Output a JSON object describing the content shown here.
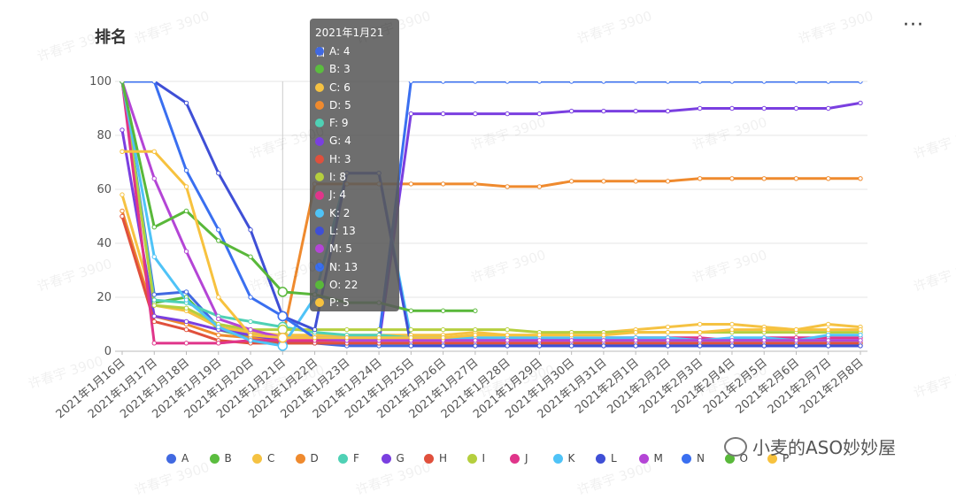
{
  "header": {
    "title": "排名",
    "more_label": "···"
  },
  "watermark": {
    "text": "许春宇 3900"
  },
  "brand": {
    "text": "小麦的ASO妙妙屋"
  },
  "tooltip": {
    "title": "2021年1月21日",
    "rows": [
      {
        "label": "A: 4",
        "color": "#4169e1"
      },
      {
        "label": "B: 3",
        "color": "#5bbd3f"
      },
      {
        "label": "C: 6",
        "color": "#f5c242"
      },
      {
        "label": "D: 5",
        "color": "#ef8a2e"
      },
      {
        "label": "F: 9",
        "color": "#4fd1b5"
      },
      {
        "label": "G: 4",
        "color": "#7a3fe0"
      },
      {
        "label": "H: 3",
        "color": "#e0503c"
      },
      {
        "label": "I: 8",
        "color": "#b5cf3e"
      },
      {
        "label": "J: 4",
        "color": "#e0358a"
      },
      {
        "label": "K: 2",
        "color": "#4fc3f7"
      },
      {
        "label": "L: 13",
        "color": "#3f4fd6"
      },
      {
        "label": "M: 5",
        "color": "#b445d6"
      },
      {
        "label": "N: 13",
        "color": "#3a6ff0"
      },
      {
        "label": "O: 22",
        "color": "#59b83a"
      },
      {
        "label": "P: 5",
        "color": "#f7c23e"
      }
    ]
  },
  "chart_data": {
    "type": "line",
    "title": "排名",
    "xlabel": "",
    "ylabel": "",
    "ylim": [
      0,
      100
    ],
    "yticks": [
      "0",
      "20",
      "40",
      "60",
      "80",
      "100"
    ],
    "grid": true,
    "legend_position": "bottom",
    "categories": [
      "2021年1月16日",
      "2021年1月17日",
      "2021年1月18日",
      "2021年1月19日",
      "2021年1月20日",
      "2021年1月21日",
      "2021年1月22日",
      "2021年1月23日",
      "2021年1月24日",
      "2021年1月25日",
      "2021年1月26日",
      "2021年1月27日",
      "2021年1月28日",
      "2021年1月29日",
      "2021年1月30日",
      "2021年1月31日",
      "2021年2月1日",
      "2021年2月2日",
      "2021年2月3日",
      "2021年2月4日",
      "2021年2月5日",
      "2021年2月6日",
      "2021年2月7日",
      "2021年2月8日"
    ],
    "series": [
      {
        "name": "A",
        "color": "#4169e1",
        "values": [
          100,
          21,
          22,
          9,
          7,
          4,
          3,
          2,
          2,
          2,
          2,
          2,
          2,
          2,
          2,
          2,
          2,
          2,
          2,
          2,
          2,
          2,
          2,
          2
        ]
      },
      {
        "name": "B",
        "color": "#5bbd3f",
        "values": [
          100,
          18,
          20,
          8,
          5,
          3,
          3,
          3,
          3,
          3,
          3,
          3,
          3,
          3,
          3,
          3,
          3,
          3,
          3,
          3,
          3,
          3,
          3,
          3
        ]
      },
      {
        "name": "C",
        "color": "#f5c242",
        "values": [
          58,
          17,
          15,
          9,
          7,
          6,
          6,
          6,
          6,
          6,
          6,
          7,
          6,
          6,
          7,
          7,
          8,
          9,
          10,
          10,
          9,
          8,
          10,
          9
        ]
      },
      {
        "name": "D",
        "color": "#ef8a2e",
        "values": [
          52,
          13,
          10,
          6,
          5,
          5,
          62,
          62,
          62,
          62,
          62,
          62,
          61,
          61,
          63,
          63,
          63,
          63,
          64,
          64,
          64,
          64,
          64,
          64
        ]
      },
      {
        "name": "F",
        "color": "#4fd1b5",
        "values": [
          100,
          19,
          18,
          13,
          11,
          9,
          7,
          6,
          6,
          5,
          5,
          5,
          5,
          5,
          4,
          4,
          4,
          4,
          4,
          4,
          4,
          4,
          4,
          4
        ]
      },
      {
        "name": "G",
        "color": "#7a3fe0",
        "values": [
          82,
          13,
          11,
          8,
          6,
          4,
          3,
          3,
          3,
          88,
          88,
          88,
          88,
          88,
          89,
          89,
          89,
          89,
          90,
          90,
          90,
          90,
          90,
          92
        ]
      },
      {
        "name": "H",
        "color": "#e0503c",
        "values": [
          50,
          11,
          8,
          4,
          3,
          3,
          3,
          3,
          3,
          3,
          3,
          3,
          3,
          3,
          3,
          3,
          3,
          3,
          3,
          3,
          3,
          3,
          3,
          3
        ]
      },
      {
        "name": "I",
        "color": "#b5cf3e",
        "values": [
          100,
          17,
          16,
          10,
          8,
          8,
          8,
          8,
          8,
          8,
          8,
          8,
          8,
          7,
          7,
          7,
          7,
          7,
          7,
          7,
          7,
          7,
          7,
          7
        ]
      },
      {
        "name": "J",
        "color": "#e0358a",
        "values": [
          100,
          3,
          3,
          3,
          4,
          4,
          4,
          4,
          4,
          4,
          4,
          4,
          4,
          4,
          4,
          5,
          5,
          5,
          5,
          4,
          5,
          5,
          5,
          5
        ]
      },
      {
        "name": "K",
        "color": "#4fc3f7",
        "values": [
          100,
          35,
          19,
          9,
          4,
          2,
          20,
          66,
          66,
          5,
          5,
          5,
          5,
          5,
          5,
          5,
          5,
          5,
          4,
          5,
          5,
          4,
          6,
          6
        ]
      },
      {
        "name": "L",
        "color": "#3f4fd6",
        "values": [
          100,
          100,
          92,
          66,
          45,
          13,
          8,
          66,
          66,
          2,
          2,
          2,
          2,
          2,
          2,
          2,
          2,
          2,
          2,
          2,
          2,
          2,
          2,
          2
        ]
      },
      {
        "name": "M",
        "color": "#b445d6",
        "values": [
          100,
          64,
          37,
          12,
          8,
          5,
          5,
          4,
          4,
          4,
          4,
          4,
          4,
          4,
          4,
          4,
          4,
          4,
          4,
          4,
          4,
          4,
          4,
          4
        ]
      },
      {
        "name": "N",
        "color": "#3a6ff0",
        "values": [
          100,
          100,
          67,
          45,
          20,
          13,
          5,
          5,
          5,
          100,
          100,
          100,
          100,
          100,
          100,
          100,
          100,
          100,
          100,
          100,
          100,
          100,
          100,
          100
        ]
      },
      {
        "name": "O",
        "color": "#59b83a",
        "values": [
          100,
          46,
          52,
          41,
          35,
          22,
          21,
          18,
          18,
          15,
          15,
          15,
          null,
          null,
          null,
          null,
          null,
          null,
          null,
          null,
          null,
          null,
          null,
          null
        ]
      },
      {
        "name": "P",
        "color": "#f7c23e",
        "values": [
          74,
          74,
          61,
          20,
          6,
          5,
          5,
          5,
          5,
          5,
          5,
          6,
          6,
          6,
          6,
          6,
          7,
          7,
          7,
          8,
          8,
          8,
          8,
          8
        ]
      }
    ]
  }
}
